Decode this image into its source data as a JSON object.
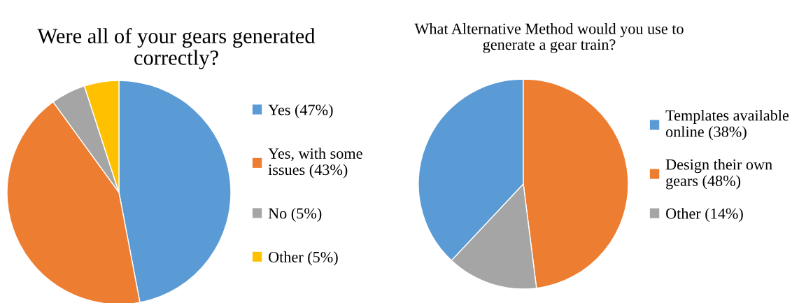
{
  "chart_data": [
    {
      "type": "pie",
      "title": "Were all of your gears generated\ncorrectly?",
      "categories": [
        "Yes (47%)",
        "Yes, with some\nissues (43%)",
        "No (5%)",
        "Other (5%)"
      ],
      "values": [
        47,
        43,
        5,
        5
      ],
      "colors": [
        "#5b9bd5",
        "#ed7d31",
        "#a5a5a5",
        "#ffc000"
      ],
      "legend": "right"
    },
    {
      "type": "pie",
      "title": "What Alternative Method would you use to\ngenerate a gear train?",
      "categories": [
        "Templates available\nonline (38%)",
        "Design their own\ngears (48%)",
        "Other (14%)"
      ],
      "values": [
        38,
        48,
        14
      ],
      "colors": [
        "#5b9bd5",
        "#ed7d31",
        "#a5a5a5"
      ],
      "legend": "right"
    }
  ]
}
